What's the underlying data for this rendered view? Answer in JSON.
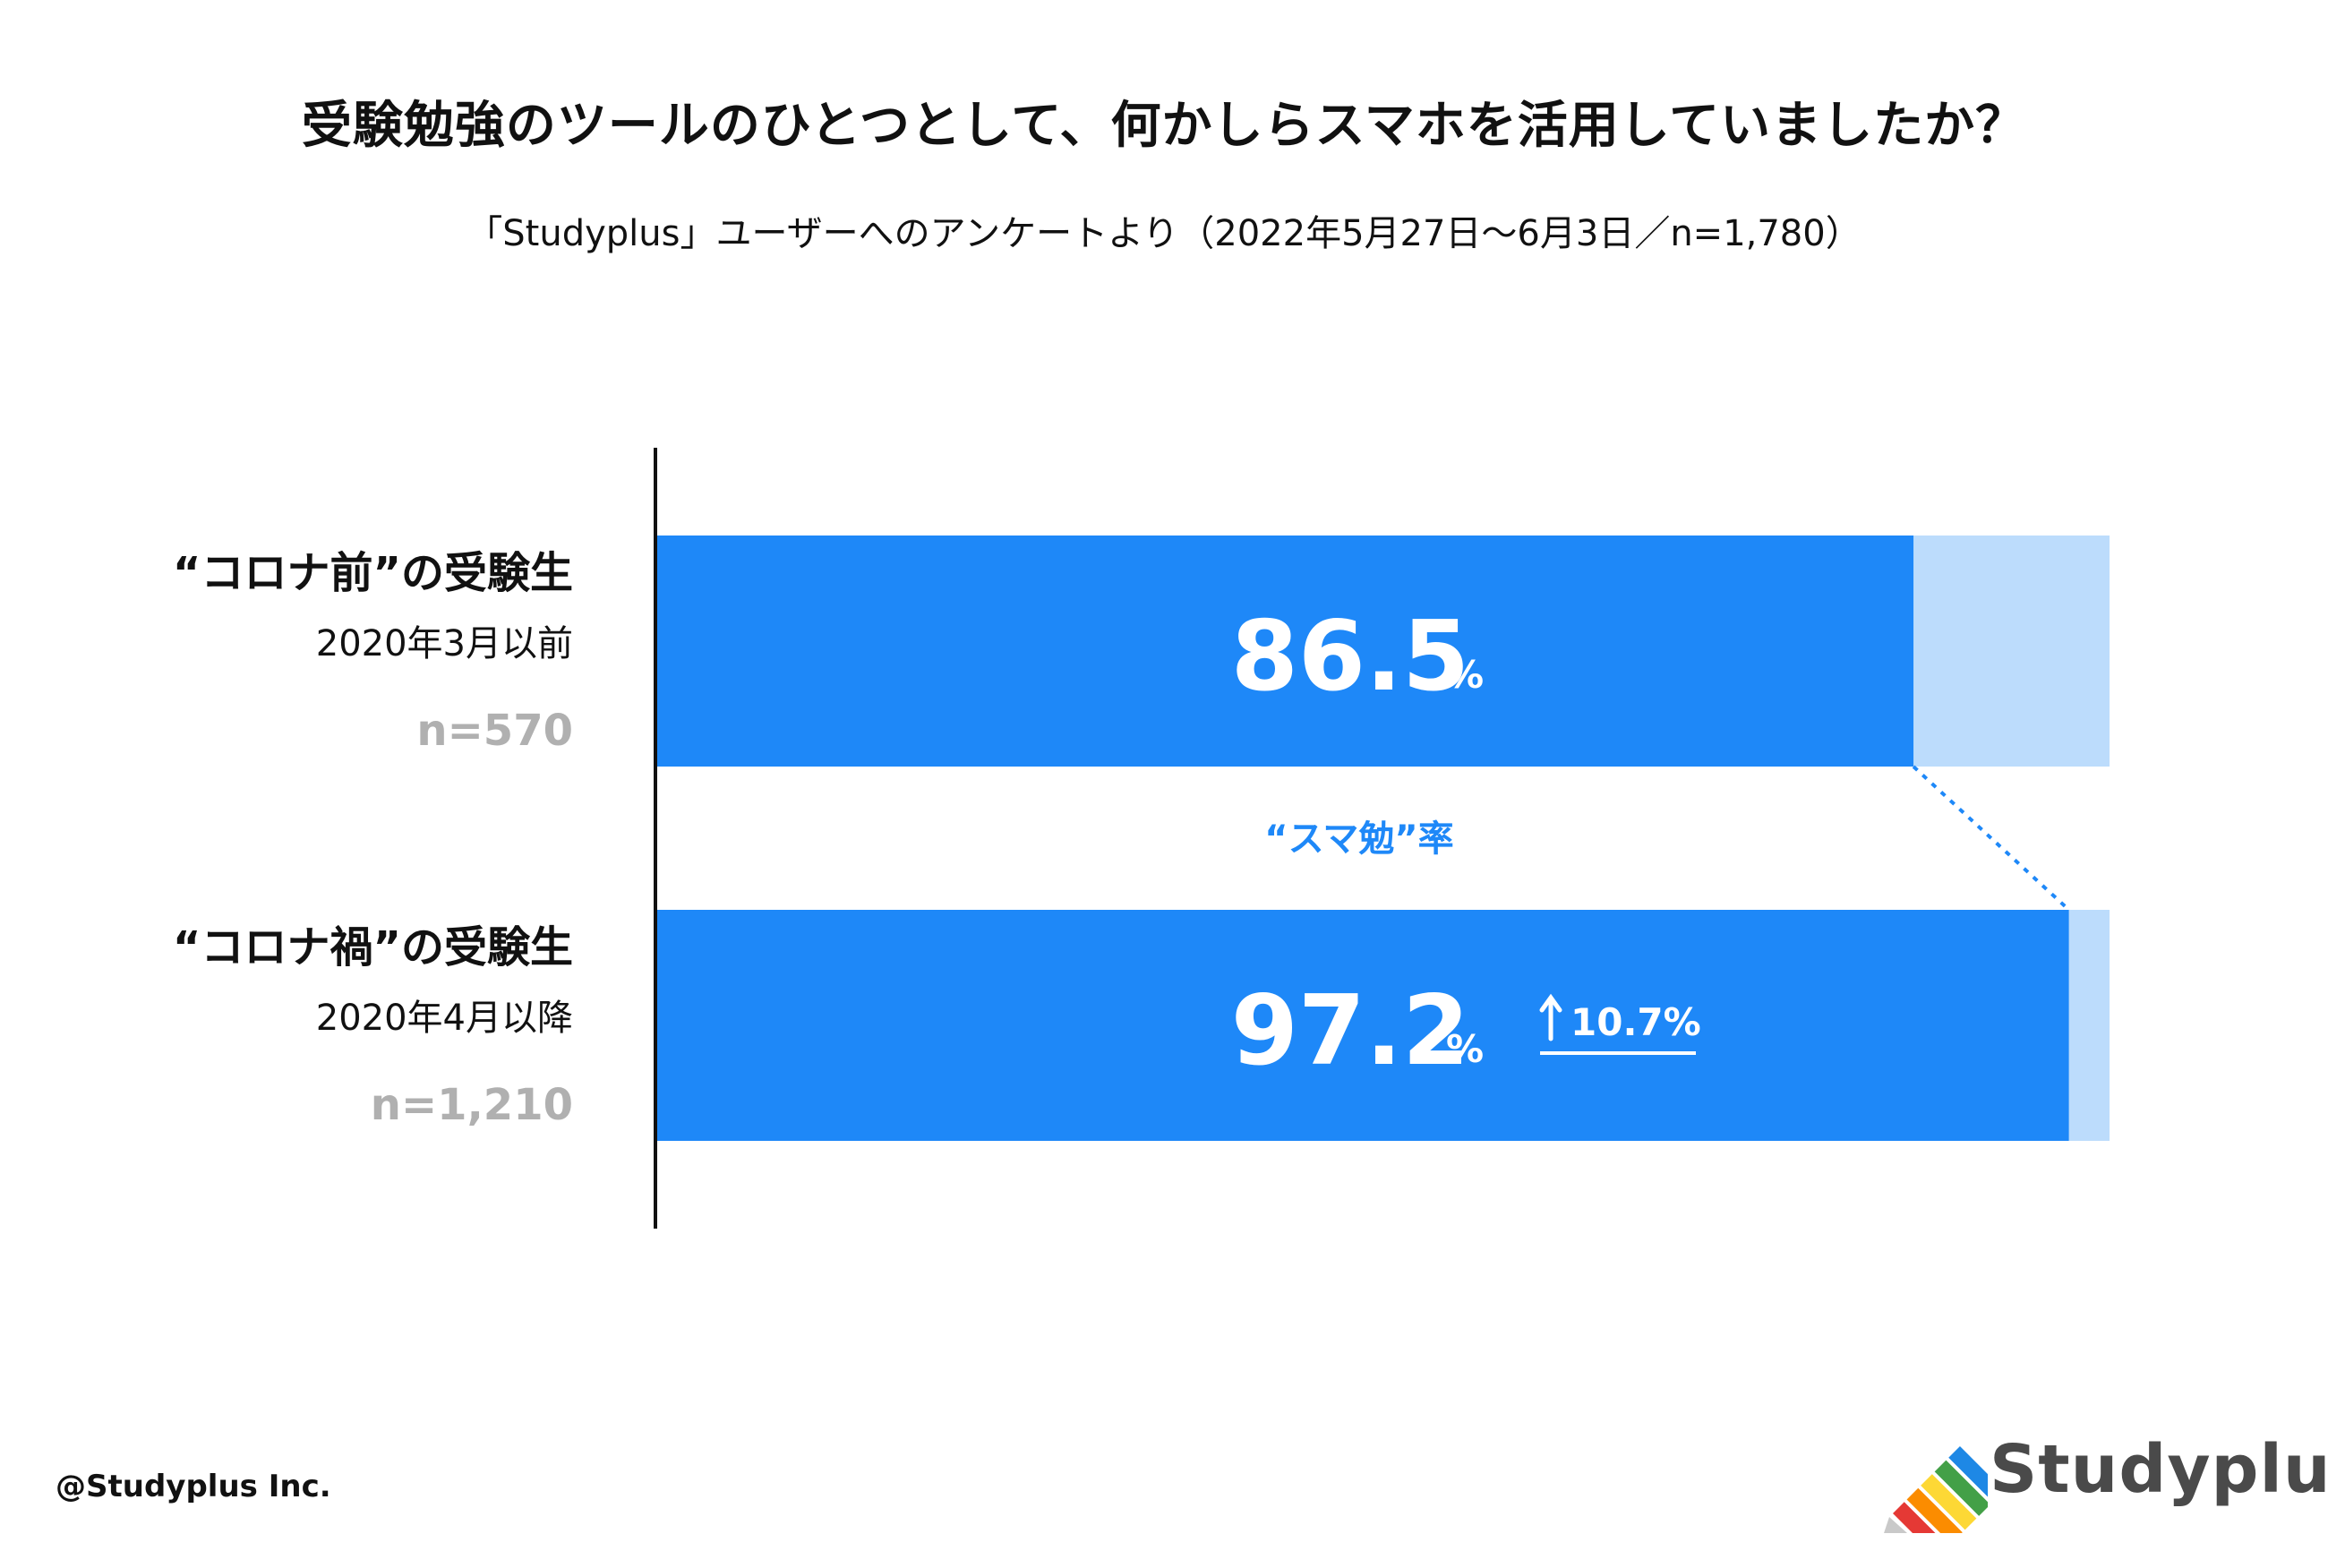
{
  "title": "受験勉強のツールのひとつとして、何かしらスマホを活用していましたか？",
  "subtitle": "「Studyplus」ユーザーへのアンケートより（2022年5月27日〜6月3日／n=1,780）",
  "footer_copyright": "@Studyplus Inc.",
  "logo_text": "Studyplus",
  "colors": {
    "bar_fill": "#1e88f8",
    "bar_remainder": "#bcdcfc",
    "axis": "#111111",
    "annotation": "#1e88f8",
    "muted": "#b0b0b0"
  },
  "chart_data": {
    "type": "bar",
    "orientation": "horizontal",
    "stacked_to_100": true,
    "xlim": [
      0,
      100
    ],
    "categories": [
      {
        "name": "“コロナ前”の受験生",
        "period": "2020年3月以前",
        "n": "n=570"
      },
      {
        "name": "“コロナ禍”の受験生",
        "period": "2020年4月以降",
        "n": "n=1,210"
      }
    ],
    "values": [
      86.5,
      97.2
    ],
    "value_labels": [
      "86.5",
      "97.2"
    ],
    "unit": "%",
    "connector_label": "“スマ勉”率",
    "increase_label": "10.7%",
    "increase_value": 10.7
  }
}
